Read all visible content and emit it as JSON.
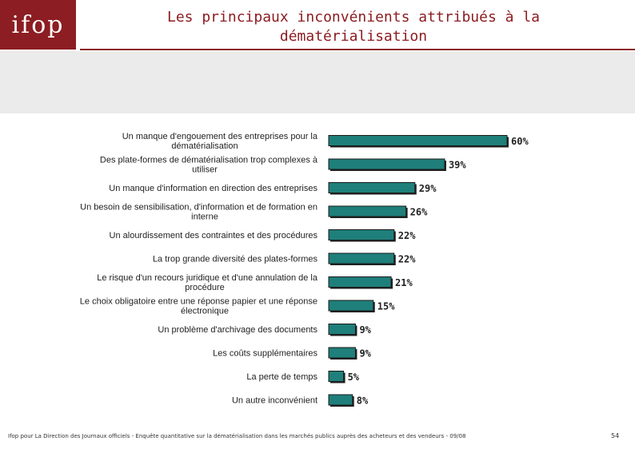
{
  "header": {
    "logo_text": "ifop",
    "title_line1": "Les principaux inconvénients attribués à la",
    "title_line2": "dématérialisation"
  },
  "footer": {
    "note": "Ifop pour La Direction des Journaux officiels - Enquête quantitative sur la dématérialisation dans les marchés publics auprès des acheteurs et des vendeurs - 09/08",
    "page_number": "54"
  },
  "colors": {
    "brand": "#8c1d22",
    "bar_fill": "#1f7f7a",
    "bar_shadow": "#222222",
    "grey_band": "#ebebeb"
  },
  "chart_data": {
    "type": "bar",
    "orientation": "horizontal",
    "title": "",
    "xlabel": "",
    "ylabel": "",
    "xlim": [
      0,
      60
    ],
    "grid": false,
    "value_suffix": "%",
    "categories": [
      [
        "Un manque d'engouement des entreprises pour la",
        "dématérialisation"
      ],
      [
        "Des plate-formes de dématérialisation trop complexes à",
        "utiliser"
      ],
      [
        "Un manque d'information en direction des entreprises"
      ],
      [
        "Un besoin de sensibilisation, d'information et de formation en",
        "interne"
      ],
      [
        "Un alourdissement des contraintes et des procédures"
      ],
      [
        "La trop grande diversité des plates-formes"
      ],
      [
        "Le risque d'un recours juridique et d'une annulation de la",
        "procédure"
      ],
      [
        "Le choix obligatoire entre une réponse papier et une réponse",
        "électronique"
      ],
      [
        "Un problème d'archivage des documents"
      ],
      [
        "Les coûts supplémentaires"
      ],
      [
        "La perte de temps"
      ],
      [
        "Un autre inconvénient"
      ]
    ],
    "values": [
      60,
      39,
      29,
      26,
      22,
      22,
      21,
      15,
      9,
      9,
      5,
      8
    ]
  }
}
